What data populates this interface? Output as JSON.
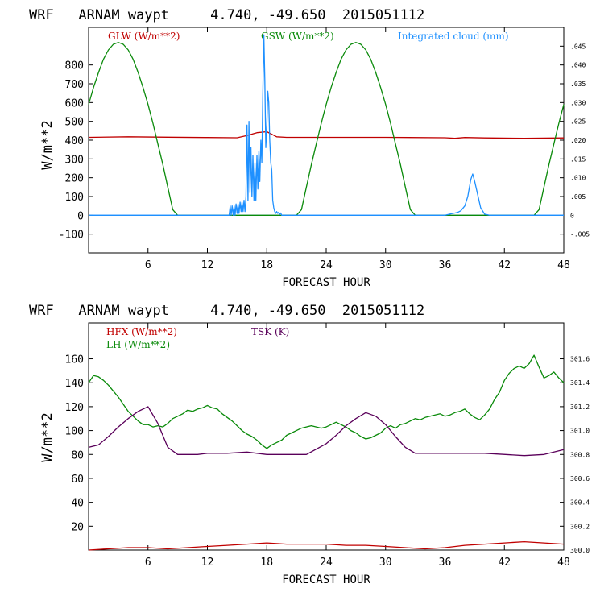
{
  "chart_data": [
    {
      "type": "line",
      "title": "WRF   ARNAM waypt     4.740, -49.650  2015051112",
      "xlabel": "FORECAST HOUR",
      "ylabel": "W/m**2",
      "xlim": [
        0,
        48
      ],
      "ylim": [
        -200,
        1000
      ],
      "y2lim": [
        -0.01,
        0.05
      ],
      "x_ticks": [
        "6",
        "12",
        "18",
        "24",
        "30",
        "36",
        "42",
        "48"
      ],
      "y_ticks": [
        "-100",
        "0",
        "100",
        "200",
        "300",
        "400",
        "500",
        "600",
        "700",
        "800"
      ],
      "y2_ticks": [
        "-.005",
        "0",
        ".005",
        ".010",
        ".015",
        ".020",
        ".025",
        ".030",
        ".035",
        ".040",
        ".045"
      ],
      "series": [
        {
          "name": "GLW (W/m**2)",
          "color": "#c00000",
          "axis": "left",
          "x": [
            0,
            4,
            8,
            12,
            15,
            16,
            17,
            18,
            19,
            20,
            24,
            30,
            36,
            37,
            38,
            40,
            44,
            48
          ],
          "values": [
            415,
            418,
            416,
            414,
            413,
            425,
            440,
            445,
            418,
            415,
            415,
            415,
            413,
            410,
            414,
            412,
            410,
            412
          ]
        },
        {
          "name": "GSW (W/m**2)",
          "color": "#0a8a0a",
          "axis": "left",
          "x": [
            0,
            0.5,
            1,
            1.5,
            2,
            2.5,
            3,
            3.5,
            4,
            4.5,
            5,
            5.5,
            6,
            6.5,
            7,
            7.5,
            8,
            8.5,
            9,
            9.5,
            21,
            21.5,
            22,
            22.5,
            23,
            23.5,
            24,
            24.5,
            25,
            25.5,
            26,
            26.5,
            27,
            27.5,
            28,
            28.5,
            29,
            29.5,
            30,
            30.5,
            31,
            31.5,
            32,
            32.5,
            33,
            33.5,
            45,
            45.5,
            46,
            46.5,
            47,
            47.5,
            48
          ],
          "values": [
            590,
            680,
            760,
            830,
            880,
            910,
            920,
            910,
            880,
            830,
            760,
            680,
            590,
            490,
            380,
            270,
            150,
            30,
            0,
            0,
            0,
            30,
            150,
            270,
            380,
            490,
            590,
            680,
            760,
            830,
            880,
            910,
            920,
            910,
            880,
            830,
            760,
            680,
            590,
            490,
            380,
            270,
            150,
            30,
            0,
            0,
            0,
            30,
            150,
            270,
            380,
            490,
            590
          ]
        },
        {
          "name": "Integrated cloud (mm)",
          "color": "#1e90ff",
          "axis": "right",
          "x": [
            0,
            14.2,
            14.3,
            14.4,
            14.5,
            14.6,
            14.7,
            14.8,
            14.9,
            15,
            15.1,
            15.2,
            15.3,
            15.4,
            15.5,
            15.6,
            15.7,
            15.8,
            15.9,
            16,
            16.1,
            16.2,
            16.3,
            16.4,
            16.5,
            16.6,
            16.7,
            16.8,
            16.9,
            17,
            17.1,
            17.2,
            17.3,
            17.4,
            17.5,
            17.6,
            17.7,
            17.8,
            17.9,
            18,
            18.1,
            18.2,
            18.3,
            18.4,
            18.5,
            18.6,
            18.7,
            18.8,
            18.9,
            19,
            19.1,
            19.2,
            19.3,
            19.4,
            19.5,
            19.6,
            20,
            36,
            36.3,
            36.6,
            37,
            37.3,
            37.6,
            38,
            38.3,
            38.6,
            38.8,
            39,
            39.3,
            39.6,
            40,
            40.5,
            48
          ],
          "values": [
            0,
            0,
            0.0025,
            0,
            0.0025,
            0,
            0.0025,
            0,
            0.003,
            0.0005,
            0.003,
            0.0005,
            0.0035,
            0.001,
            0.0035,
            0.001,
            0.004,
            0.001,
            0.005,
            0.024,
            0.004,
            0.025,
            0.006,
            0.018,
            0.005,
            0.016,
            0.004,
            0.014,
            0.004,
            0.016,
            0.007,
            0.017,
            0.009,
            0.02,
            0.014,
            0.032,
            0.048,
            0.036,
            0.018,
            0.024,
            0.033,
            0.03,
            0.02,
            0.014,
            0.012,
            0.004,
            0.002,
            0.001,
            0.0005,
            0.001,
            0.0005,
            0.0008,
            0.0003,
            0.0006,
            0,
            0,
            0,
            0,
            0.0002,
            0.0004,
            0.0006,
            0.0008,
            0.0012,
            0.0025,
            0.005,
            0.0095,
            0.011,
            0.009,
            0.0055,
            0.002,
            0.0003,
            0,
            0
          ]
        }
      ]
    },
    {
      "type": "line",
      "title": "WRF   ARNAM waypt     4.740, -49.650  2015051112",
      "xlabel": "FORECAST HOUR",
      "ylabel": "W/m**2",
      "xlim": [
        0,
        48
      ],
      "ylim": [
        0,
        190
      ],
      "y2lim": [
        300.0,
        301.9
      ],
      "x_ticks": [
        "6",
        "12",
        "18",
        "24",
        "30",
        "36",
        "42",
        "48"
      ],
      "y_ticks": [
        "20",
        "40",
        "60",
        "80",
        "100",
        "120",
        "140",
        "160"
      ],
      "y2_ticks": [
        "300.0",
        "300.2",
        "300.4",
        "300.6",
        "300.8",
        "301.0",
        "301.2",
        "301.4",
        "301.6"
      ],
      "series": [
        {
          "name": "HFX (W/m**2)",
          "color": "#c00000",
          "axis": "left",
          "x": [
            0,
            2,
            4,
            6,
            8,
            10,
            12,
            14,
            16,
            18,
            20,
            22,
            24,
            26,
            28,
            30,
            32,
            34,
            36,
            38,
            40,
            42,
            44,
            46,
            48
          ],
          "values": [
            0,
            1,
            2,
            2,
            1,
            2,
            3,
            4,
            5,
            6,
            5,
            5,
            5,
            4,
            4,
            3,
            2,
            1,
            2,
            4,
            5,
            6,
            7,
            6,
            5
          ]
        },
        {
          "name": "LH (W/m**2)",
          "color": "#0a8a0a",
          "axis": "left",
          "x": [
            0,
            0.5,
            1,
            1.5,
            2,
            2.5,
            3,
            3.5,
            4,
            4.5,
            5,
            5.5,
            6,
            6.5,
            7,
            7.5,
            8,
            8.5,
            9,
            9.5,
            10,
            10.5,
            11,
            11.5,
            12,
            12.5,
            13,
            13.5,
            14,
            14.5,
            15,
            15.5,
            16,
            16.5,
            17,
            17.5,
            18,
            18.5,
            19,
            19.5,
            20,
            20.5,
            21,
            21.5,
            22,
            22.5,
            23,
            23.5,
            24,
            24.5,
            25,
            25.5,
            26,
            26.5,
            27,
            27.5,
            28,
            28.5,
            29,
            29.5,
            30,
            30.5,
            31,
            31.5,
            32,
            32.5,
            33,
            33.5,
            34,
            34.5,
            35,
            35.5,
            36,
            36.5,
            37,
            37.5,
            38,
            38.5,
            39,
            39.5,
            40,
            40.5,
            41,
            41.5,
            42,
            42.5,
            43,
            43.5,
            44,
            44.5,
            45,
            45.5,
            46,
            46.5,
            47,
            47.5,
            48
          ],
          "values": [
            140,
            146,
            145,
            142,
            138,
            133,
            128,
            122,
            116,
            112,
            108,
            105,
            105,
            103,
            104,
            103,
            106,
            110,
            112,
            114,
            117,
            116,
            118,
            119,
            121,
            119,
            118,
            114,
            111,
            108,
            104,
            100,
            97,
            95,
            92,
            88,
            85,
            88,
            90,
            92,
            96,
            98,
            100,
            102,
            103,
            104,
            103,
            102,
            103,
            105,
            107,
            105,
            103,
            100,
            98,
            95,
            93,
            94,
            96,
            98,
            102,
            104,
            102,
            105,
            106,
            108,
            110,
            109,
            111,
            112,
            113,
            114,
            112,
            113,
            115,
            116,
            118,
            114,
            111,
            109,
            113,
            118,
            126,
            132,
            142,
            148,
            152,
            154,
            152,
            156,
            163,
            153,
            144,
            146,
            149,
            144,
            140
          ]
        },
        {
          "name": "TSK (K)",
          "color": "#5a005a",
          "axis": "right",
          "x": [
            0,
            1,
            2,
            3,
            4,
            5,
            6,
            7,
            8,
            9,
            10,
            11,
            12,
            14,
            16,
            18,
            20,
            22,
            24,
            25,
            26,
            27,
            28,
            29,
            30,
            31,
            32,
            33,
            34,
            36,
            40,
            44,
            46,
            48
          ],
          "values": [
            300.86,
            300.88,
            300.95,
            301.03,
            301.1,
            301.16,
            301.2,
            301.06,
            300.86,
            300.8,
            300.8,
            300.8,
            300.81,
            300.81,
            300.82,
            300.8,
            300.8,
            300.8,
            300.89,
            300.96,
            301.04,
            301.1,
            301.15,
            301.12,
            301.05,
            300.95,
            300.86,
            300.81,
            300.81,
            300.81,
            300.81,
            300.79,
            300.8,
            300.84
          ]
        }
      ]
    }
  ]
}
